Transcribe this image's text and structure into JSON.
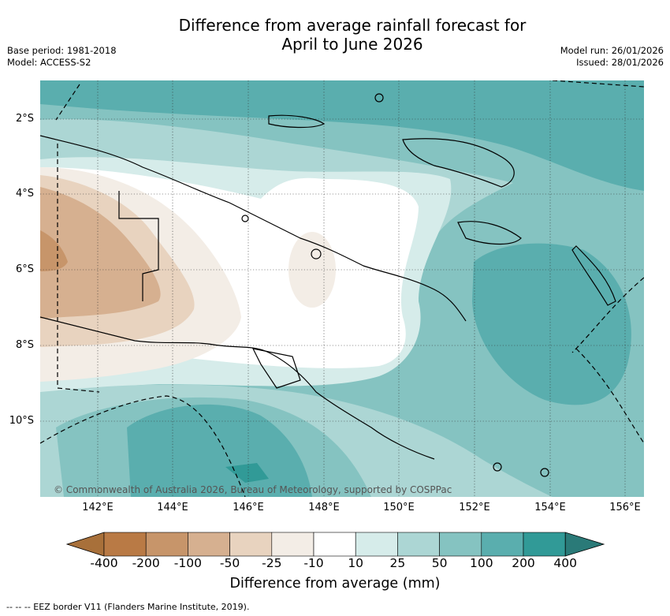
{
  "title_line1": "Difference from average rainfall forecast for",
  "title_line2": "April to June 2026",
  "base_period": "Base period: 1981-2018",
  "model": "Model: ACCESS-S2",
  "model_run": "Model run: 26/01/2026",
  "issued": "Issued: 28/01/2026",
  "lat_labels": [
    "2°S",
    "4°S",
    "6°S",
    "8°S",
    "10°S"
  ],
  "lon_labels": [
    "142°E",
    "144°E",
    "146°E",
    "148°E",
    "150°E",
    "152°E",
    "154°E",
    "156°E"
  ],
  "copyright": "© Commonwealth of Australia 2026, Bureau of Meteorology, supported by COSPPac",
  "colorbar": {
    "ticks": [
      "-400",
      "-200",
      "-100",
      "-50",
      "-25",
      "-10",
      "10",
      "25",
      "50",
      "100",
      "200",
      "400"
    ],
    "colors": [
      "#a8703a",
      "#b97a45",
      "#c7956a",
      "#d6b090",
      "#e8d3bf",
      "#f3ede6",
      "#ffffff",
      "#d6ecea",
      "#acd6d4",
      "#85c3c1",
      "#5aaeae",
      "#319a97",
      "#2a7a78"
    ],
    "label": "Difference from average (mm)"
  },
  "eez_note": "--  --  -- EEZ border V11 (Flanders Marine Institute, 2019)."
}
